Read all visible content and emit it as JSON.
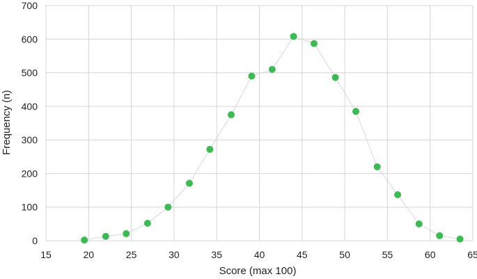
{
  "chart_data": {
    "type": "scatter",
    "title": "",
    "xlabel": "Score (max 100)",
    "ylabel": "Frequency (n)",
    "xlim": [
      15,
      65
    ],
    "ylim": [
      0,
      700
    ],
    "x_ticks": [
      15,
      20,
      25,
      30,
      35,
      40,
      45,
      50,
      55,
      60,
      65
    ],
    "y_ticks": [
      0,
      100,
      200,
      300,
      400,
      500,
      600,
      700
    ],
    "grid": true,
    "legend": "none",
    "colors": {
      "marker": "#3dbb53",
      "line": "#d9d9d9",
      "grid": "#d4d4d4",
      "text": "#222222"
    },
    "series": [
      {
        "x": [
          19.5,
          22.0,
          24.4,
          26.9,
          29.3,
          31.8,
          34.2,
          36.7,
          39.1,
          41.5,
          44.0,
          46.4,
          48.9,
          51.3,
          53.8,
          56.2,
          58.7,
          61.1,
          63.5
        ],
        "y": [
          2,
          13,
          21,
          52,
          100,
          171,
          272,
          375,
          490,
          510,
          608,
          587,
          486,
          385,
          220,
          137,
          50,
          15,
          5
        ]
      }
    ]
  }
}
